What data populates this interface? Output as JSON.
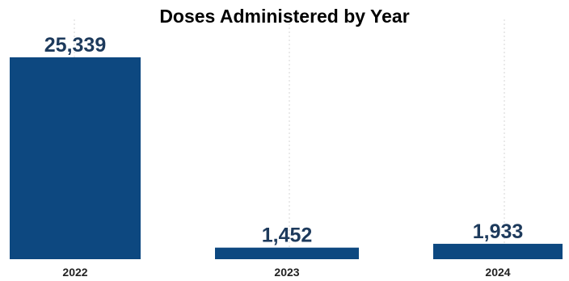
{
  "chart_data": {
    "type": "bar",
    "title": "Doses Administered by Year",
    "categories": [
      "2022",
      "2023",
      "2024"
    ],
    "values": [
      25339,
      1452,
      1933
    ],
    "value_labels": [
      "25,339",
      "1,452",
      "1,933"
    ],
    "xlabel": "",
    "ylabel": "",
    "ylim": [
      0,
      25339
    ],
    "grid": "vertical dotted",
    "legend": "none",
    "colors": {
      "bar": "#0d4880",
      "label": "#1d3a5c",
      "grid": "#d6d6d6"
    }
  }
}
